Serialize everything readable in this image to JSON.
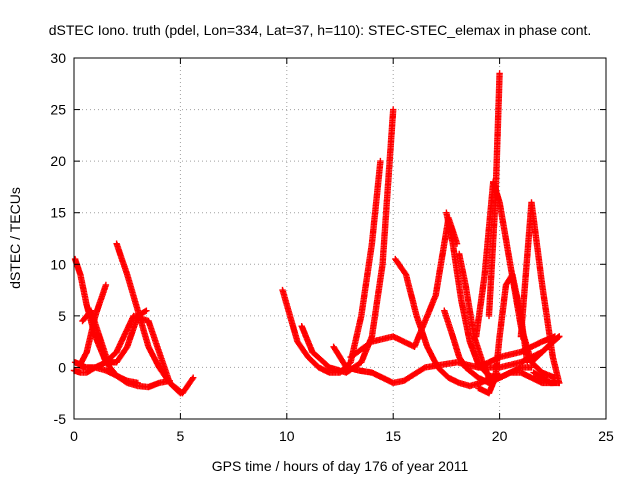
{
  "chart_data": {
    "type": "scatter",
    "title": "dSTEC Iono. truth (pdel, Lon=334, Lat=37, h=110): STEC-STEC_elemax in phase cont.",
    "xlabel": "GPS time / hours of day 176 of year 2011",
    "ylabel": "dSTEC  / TECUs",
    "xlim": [
      0,
      25
    ],
    "ylim": [
      -5,
      30
    ],
    "x_ticks": [
      "0",
      "5",
      "10",
      "15",
      "20",
      "25"
    ],
    "y_ticks": [
      "-5",
      "0",
      "5",
      "10",
      "15",
      "20",
      "25",
      "30"
    ],
    "grid": true,
    "legend": "none",
    "marker": "+",
    "color": "#ff0000",
    "series": [
      {
        "x": [
          0.0,
          0.3,
          0.6,
          1.0,
          1.5,
          2.0,
          2.8,
          3.5,
          4.5,
          5.1,
          5.6
        ],
        "y": [
          -0.3,
          -0.5,
          -0.5,
          0.0,
          0.5,
          1.5,
          5.0,
          4.5,
          -1.5,
          -2.5,
          -1.0
        ]
      },
      {
        "x": [
          0.05,
          0.3,
          0.6,
          1.0,
          1.5,
          2.0,
          2.5,
          3.0,
          3.5,
          4.0,
          4.5
        ],
        "y": [
          10.5,
          9.0,
          6.0,
          3.0,
          0.5,
          -0.8,
          -1.5,
          -1.8,
          -1.9,
          -1.5,
          -1.3
        ]
      },
      {
        "x": [
          0.05,
          0.3,
          0.6,
          1.0,
          1.5
        ],
        "y": [
          0.5,
          0.3,
          1.5,
          5.0,
          8.0
        ]
      },
      {
        "x": [
          0.2,
          0.6,
          1.0,
          1.5,
          2.0,
          2.5,
          3.0
        ],
        "y": [
          0.2,
          0.0,
          0.0,
          -0.3,
          -0.8,
          -1.3,
          -1.5
        ]
      },
      {
        "x": [
          2.0,
          2.5,
          3.0,
          3.5,
          4.0,
          4.5,
          5.0
        ],
        "y": [
          12.0,
          9.0,
          5.5,
          2.0,
          0.0,
          -1.5,
          -2.5
        ]
      },
      {
        "x": [
          0.4,
          0.8,
          1.2,
          1.6,
          2.0,
          2.5,
          3.0,
          3.4
        ],
        "y": [
          4.5,
          5.5,
          3.0,
          0.5,
          0.5,
          2.0,
          5.0,
          5.5
        ]
      },
      {
        "x": [
          9.8,
          10.5,
          11.0,
          11.5,
          12.0,
          12.5,
          13.0,
          13.5,
          14.0,
          14.4
        ],
        "y": [
          7.5,
          2.5,
          1.0,
          0.0,
          -0.5,
          -0.5,
          0.5,
          5.0,
          12.0,
          20.0
        ]
      },
      {
        "x": [
          10.7,
          11.2,
          12.0,
          12.8,
          13.5,
          14.0,
          14.5,
          15.0
        ],
        "y": [
          4.0,
          1.5,
          0.0,
          -0.5,
          0.5,
          3.0,
          10.0,
          25.0
        ]
      },
      {
        "x": [
          12.2,
          12.8,
          13.4,
          14.0,
          14.5,
          15.0,
          15.5,
          16.5,
          18.0,
          19.0,
          20.0,
          21.0,
          22.0,
          22.8
        ],
        "y": [
          2.0,
          0.0,
          -0.3,
          -0.5,
          -1.0,
          -1.5,
          -1.3,
          0.0,
          0.5,
          0.0,
          0.0,
          0.5,
          1.5,
          3.0
        ]
      },
      {
        "x": [
          13.0,
          14.0,
          15.0,
          16.0,
          17.0,
          17.6,
          18.0
        ],
        "y": [
          1.0,
          2.5,
          3.0,
          2.0,
          7.0,
          14.5,
          12.0
        ]
      },
      {
        "x": [
          15.1,
          15.6,
          16.1,
          16.6,
          17.1,
          17.6,
          18.1,
          18.6,
          19.1,
          19.6,
          20.0
        ],
        "y": [
          10.5,
          9.0,
          5.0,
          2.0,
          0.0,
          -1.0,
          -1.5,
          -1.8,
          -1.5,
          -1.0,
          -0.8
        ]
      },
      {
        "x": [
          17.4,
          17.8,
          18.1,
          18.4,
          18.7,
          19.0,
          19.5,
          20.0,
          20.5,
          21.0,
          21.5,
          22.0,
          22.5
        ],
        "y": [
          5.5,
          3.0,
          1.0,
          0.0,
          -0.5,
          -1.0,
          -1.5,
          -1.0,
          -0.5,
          -0.5,
          -1.0,
          -1.5,
          -1.5
        ]
      },
      {
        "x": [
          17.5,
          17.8,
          18.2,
          18.6,
          19.0,
          19.5,
          20.0,
          20.5,
          21.0,
          21.5
        ],
        "y": [
          15.0,
          12.0,
          6.5,
          2.5,
          0.3,
          -0.8,
          -1.0,
          -0.5,
          0.0,
          0.0
        ]
      },
      {
        "x": [
          18.1,
          18.4,
          18.8,
          19.2,
          19.5
        ],
        "y": [
          11.0,
          8.0,
          3.0,
          0.5,
          -1.0
        ]
      },
      {
        "x": [
          18.9,
          19.3,
          19.7,
          20.0,
          20.5,
          21.0,
          21.5,
          22.0,
          22.6
        ],
        "y": [
          3.0,
          9.0,
          18.0,
          16.0,
          10.0,
          4.0,
          0.5,
          -0.5,
          -1.0
        ]
      },
      {
        "x": [
          19.0,
          19.5,
          19.8,
          20.0,
          20.3,
          20.6,
          21.0,
          21.3
        ],
        "y": [
          -2.0,
          -2.5,
          -1.0,
          3.0,
          8.0,
          9.0,
          5.0,
          0.5
        ]
      },
      {
        "x": [
          19.5,
          19.8,
          20.0
        ],
        "y": [
          5.0,
          16.0,
          28.5
        ]
      },
      {
        "x": [
          21.0,
          21.5,
          22.0,
          22.5,
          22.8
        ],
        "y": [
          3.0,
          16.0,
          8.0,
          1.0,
          -1.5
        ]
      },
      {
        "x": [
          21.5,
          22.0,
          22.5,
          22.8
        ],
        "y": [
          0.5,
          1.5,
          2.5,
          3.0
        ]
      },
      {
        "x": [
          19.0,
          20.0,
          21.0,
          22.0,
          22.6
        ],
        "y": [
          0.0,
          1.0,
          1.5,
          2.5,
          3.0
        ]
      },
      {
        "x": [
          21.6,
          22.0,
          22.4,
          22.8
        ],
        "y": [
          -0.5,
          -1.0,
          -1.5,
          -1.5
        ]
      }
    ]
  }
}
